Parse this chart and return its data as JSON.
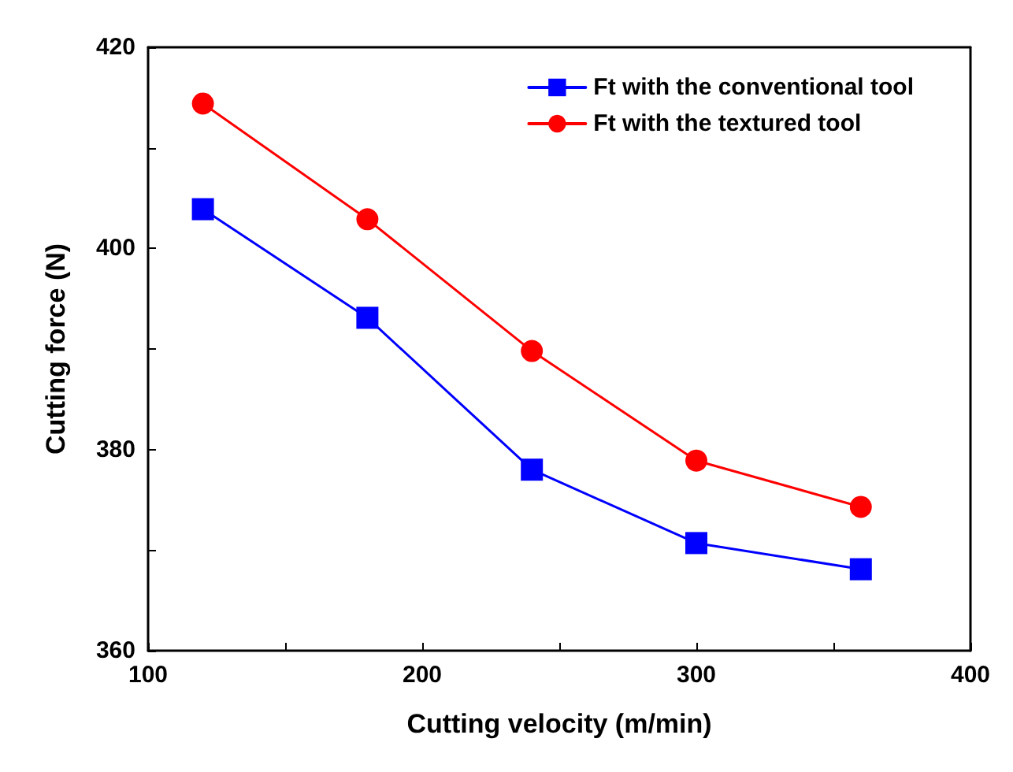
{
  "chart_data": {
    "type": "line",
    "xlabel": "Cutting velocity (m/min)",
    "ylabel": "Cutting force (N)",
    "x": [
      120,
      180,
      240,
      300,
      360
    ],
    "series": [
      {
        "name": "Ft with the conventional tool",
        "color": "#0000ff",
        "marker": "square",
        "values": [
          403.9,
          393.1,
          378.0,
          370.7,
          368.1
        ]
      },
      {
        "name": "Ft with the textured tool",
        "color": "#ff0000",
        "marker": "circle",
        "values": [
          414.4,
          402.9,
          389.8,
          378.9,
          374.3
        ]
      }
    ],
    "xlim": [
      100,
      400
    ],
    "xticks": [
      100,
      200,
      300,
      400
    ],
    "ylim": [
      360,
      420
    ],
    "yticks": [
      360,
      380,
      400,
      420
    ],
    "grid": false,
    "legend": "top right",
    "line_style": "solid"
  }
}
